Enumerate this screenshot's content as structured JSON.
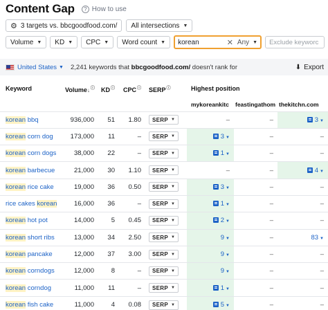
{
  "header": {
    "title": "Content Gap",
    "help_label": "How to use"
  },
  "targets": {
    "label": "3 targets vs. bbcgoodfood.com/",
    "intersections": "All intersections"
  },
  "filters": {
    "volume": "Volume",
    "kd": "KD",
    "cpc": "CPC",
    "word_count": "Word count",
    "keyword_value": "korean",
    "keyword_match": "Any",
    "exclude_placeholder": "Exclude keyworc"
  },
  "info": {
    "country": "United States",
    "summary_prefix": "2,241 keywords that",
    "summary_domain": "bbcgoodfood.com/",
    "summary_suffix": "doesn't rank for",
    "export_label": "Export"
  },
  "table": {
    "columns": {
      "keyword": "Keyword",
      "volume": "Volume",
      "kd": "KD",
      "cpc": "CPC",
      "serp": "SERP",
      "highest_position": "Highest position"
    },
    "sites": [
      "mykoreankitc",
      "feastingathom",
      "thekitchn.com"
    ],
    "serp_label": "SERP",
    "rows": [
      {
        "pre": "",
        "hl": "korean",
        "post": " bbq",
        "volume": "936,000",
        "kd": "51",
        "cpc": "1.80",
        "pos": [
          "–",
          "–",
          "3"
        ],
        "best": 2,
        "icon": true
      },
      {
        "pre": "",
        "hl": "korean",
        "post": " corn dog",
        "volume": "173,000",
        "kd": "11",
        "cpc": "–",
        "pos": [
          "3",
          "–",
          "–"
        ],
        "best": 0,
        "icon": true
      },
      {
        "pre": "",
        "hl": "korean",
        "post": " corn dogs",
        "volume": "38,000",
        "kd": "22",
        "cpc": "–",
        "pos": [
          "1",
          "–",
          "–"
        ],
        "best": 0,
        "icon": true
      },
      {
        "pre": "",
        "hl": "korean",
        "post": " barbecue",
        "volume": "21,000",
        "kd": "30",
        "cpc": "1.10",
        "pos": [
          "–",
          "–",
          "4"
        ],
        "best": 2,
        "icon": true
      },
      {
        "pre": "",
        "hl": "korean",
        "post": " rice cake",
        "volume": "19,000",
        "kd": "36",
        "cpc": "0.50",
        "pos": [
          "3",
          "–",
          "–"
        ],
        "best": 0,
        "icon": true
      },
      {
        "pre": "rice cakes ",
        "hl": "korean",
        "post": "",
        "volume": "16,000",
        "kd": "36",
        "cpc": "–",
        "pos": [
          "1",
          "–",
          "–"
        ],
        "best": 0,
        "icon": true
      },
      {
        "pre": "",
        "hl": "korean",
        "post": " hot pot",
        "volume": "14,000",
        "kd": "5",
        "cpc": "0.45",
        "pos": [
          "2",
          "–",
          "–"
        ],
        "best": 0,
        "icon": true
      },
      {
        "pre": "",
        "hl": "korean",
        "post": " short ribs",
        "volume": "13,000",
        "kd": "34",
        "cpc": "2.50",
        "pos": [
          "9",
          "–",
          "83"
        ],
        "best": 0,
        "icon": false
      },
      {
        "pre": "",
        "hl": "korean",
        "post": " pancake",
        "volume": "12,000",
        "kd": "37",
        "cpc": "3.00",
        "pos": [
          "9",
          "–",
          "–"
        ],
        "best": 0,
        "icon": false
      },
      {
        "pre": "",
        "hl": "korean",
        "post": " corndogs",
        "volume": "12,000",
        "kd": "8",
        "cpc": "–",
        "pos": [
          "9",
          "–",
          "–"
        ],
        "best": 0,
        "icon": false
      },
      {
        "pre": "",
        "hl": "korean",
        "post": " corndog",
        "volume": "11,000",
        "kd": "11",
        "cpc": "–",
        "pos": [
          "1",
          "–",
          "–"
        ],
        "best": 0,
        "icon": true
      },
      {
        "pre": "",
        "hl": "korean",
        "post": " fish cake",
        "volume": "11,000",
        "kd": "4",
        "cpc": "0.08",
        "pos": [
          "5",
          "–",
          "–"
        ],
        "best": 0,
        "icon": true
      }
    ]
  }
}
